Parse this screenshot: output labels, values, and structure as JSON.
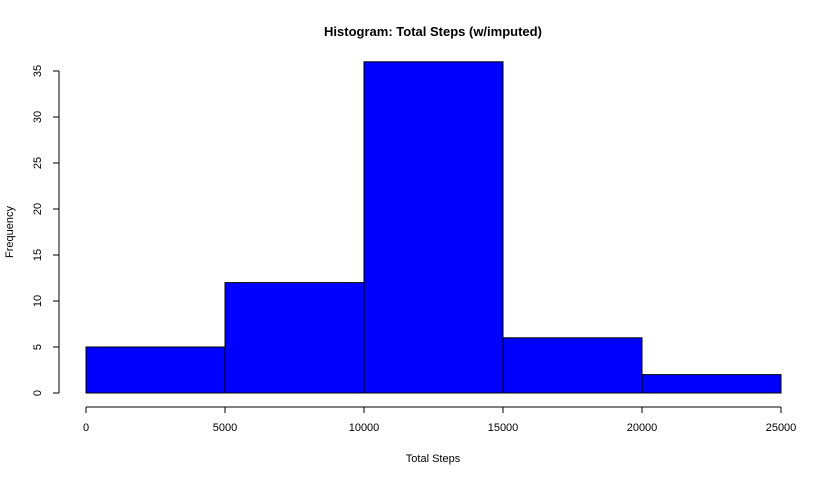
{
  "chart_data": {
    "type": "bar",
    "title": "Histogram: Total Steps (w/imputed)",
    "xlabel": "Total Steps",
    "ylabel": "Frequency",
    "bins": [
      {
        "from": 0,
        "to": 5000,
        "count": 5
      },
      {
        "from": 5000,
        "to": 10000,
        "count": 12
      },
      {
        "from": 10000,
        "to": 15000,
        "count": 36
      },
      {
        "from": 15000,
        "to": 20000,
        "count": 6
      },
      {
        "from": 20000,
        "to": 25000,
        "count": 2
      }
    ],
    "xlim": [
      0,
      25000
    ],
    "ylim": [
      0,
      35
    ],
    "x_ticks": [
      0,
      5000,
      10000,
      15000,
      20000,
      25000
    ],
    "y_ticks": [
      0,
      5,
      10,
      15,
      20,
      25,
      30,
      35
    ],
    "bar_color": "#0000FF",
    "bar_border_color": "#000000",
    "grid": false,
    "legend": "none"
  }
}
